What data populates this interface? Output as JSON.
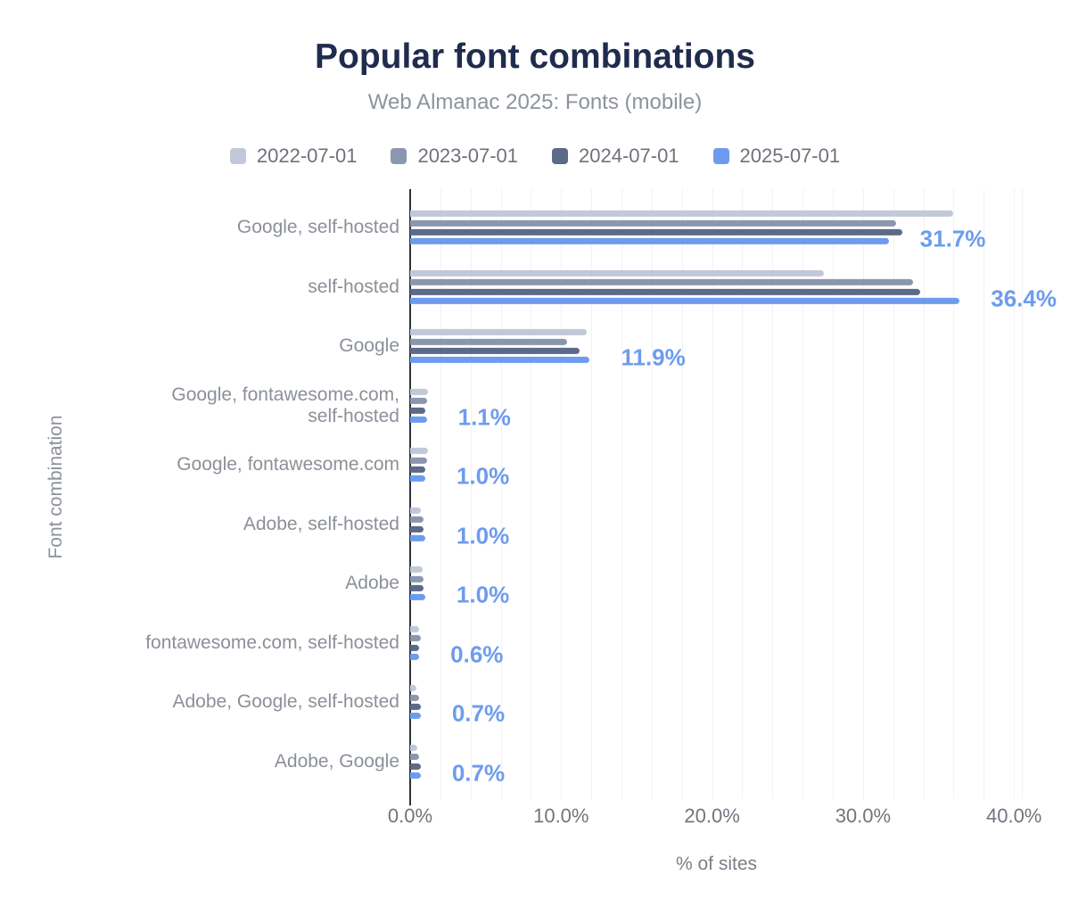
{
  "chart_data": {
    "type": "bar",
    "orientation": "horizontal",
    "title": "Popular font combinations",
    "subtitle": "Web Almanac 2025: Fonts (mobile)",
    "xlabel": "% of sites",
    "ylabel": "Font combination",
    "x_ticks": [
      "0.0%",
      "10.0%",
      "20.0%",
      "30.0%",
      "40.0%"
    ],
    "x_tick_values": [
      0,
      10,
      20,
      30,
      40
    ],
    "xlim": [
      0,
      40.5
    ],
    "grid": "vertical, minor step 2%",
    "legend_position": "top",
    "categories": [
      "Google, self-hosted",
      "self-hosted",
      "Google",
      "Google, fontawesome.com,\nself-hosted",
      "Google, fontawesome.com",
      "Adobe, self-hosted",
      "Adobe",
      "fontawesome.com, self-hosted",
      "Adobe, Google, self-hosted",
      "Adobe, Google"
    ],
    "series": [
      {
        "name": "2022-07-01",
        "color": "#c1c8d7",
        "values": [
          36.0,
          27.4,
          11.7,
          1.2,
          1.2,
          0.7,
          0.8,
          0.6,
          0.4,
          0.5
        ]
      },
      {
        "name": "2023-07-01",
        "color": "#8b97ae",
        "values": [
          32.2,
          33.3,
          10.4,
          1.1,
          1.1,
          0.9,
          0.9,
          0.7,
          0.6,
          0.6
        ]
      },
      {
        "name": "2024-07-01",
        "color": "#5a6a88",
        "values": [
          32.6,
          33.8,
          11.2,
          1.0,
          1.0,
          0.9,
          0.9,
          0.6,
          0.7,
          0.7
        ]
      },
      {
        "name": "2025-07-01",
        "color": "#6d9cee",
        "values": [
          31.7,
          36.4,
          11.9,
          1.1,
          1.0,
          1.0,
          1.0,
          0.6,
          0.7,
          0.7
        ]
      }
    ],
    "value_labels": {
      "series": "2025-07-01",
      "color": "#6d9cee",
      "texts": [
        "31.7%",
        "36.4%",
        "11.9%",
        "1.1%",
        "1.0%",
        "1.0%",
        "1.0%",
        "0.6%",
        "0.7%",
        "0.7%"
      ]
    }
  }
}
